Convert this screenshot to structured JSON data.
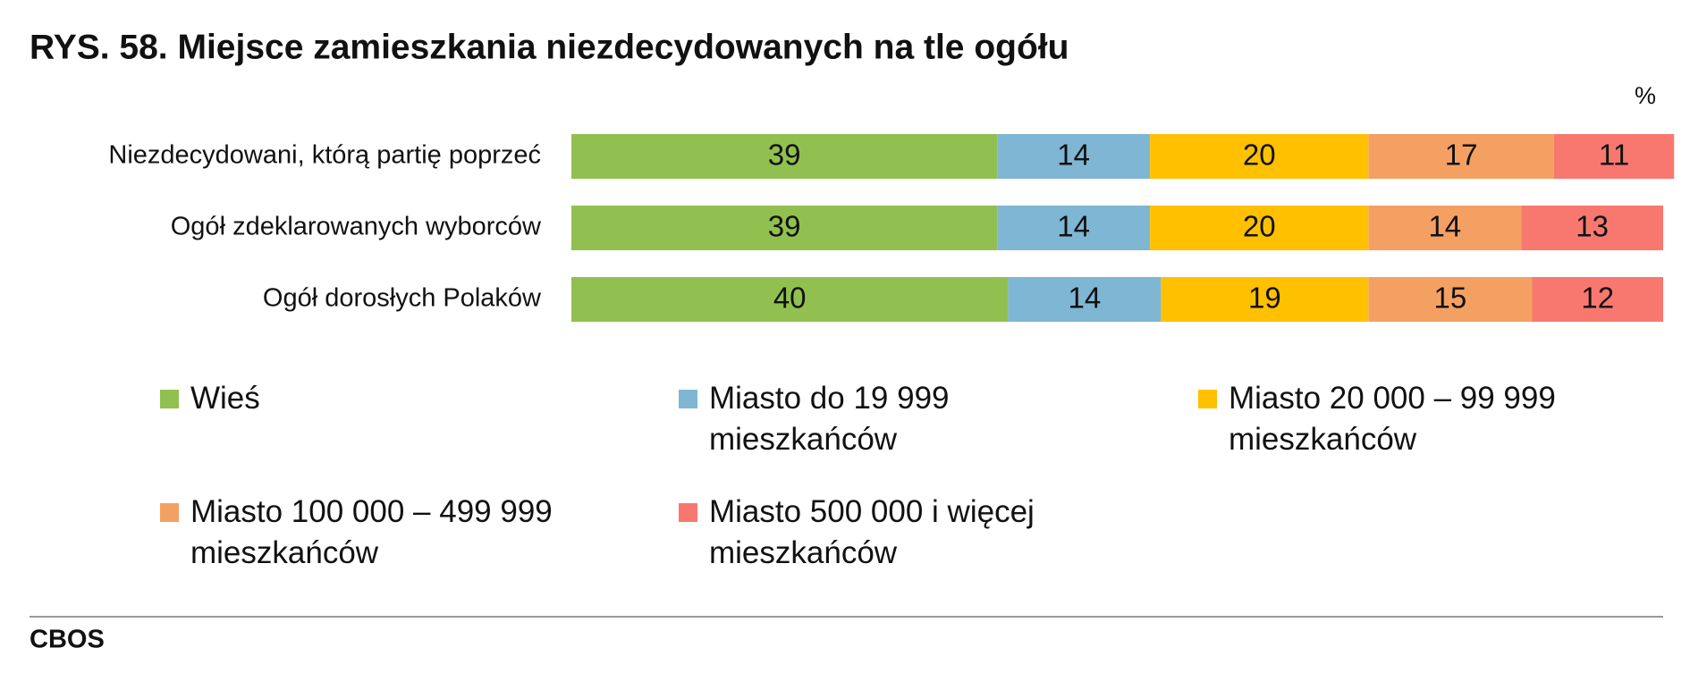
{
  "chart_data": {
    "type": "stacked-bar-horizontal",
    "title": "RYS. 58.  Miejsce zamieszkania niezdecydowanych na tle ogółu",
    "unit": "%",
    "source": "CBOS",
    "categories": [
      "Niezdecydowani, którą partię poprzeć",
      "Ogół zdeklarowanych wyborców",
      "Ogół dorosłych Polaków"
    ],
    "xlim": [
      0,
      100
    ],
    "series": [
      {
        "name": "Wieś",
        "color": "#92c050",
        "values": [
          39,
          39,
          40
        ]
      },
      {
        "name": "Miasto do 19 999 mieszkańców",
        "color": "#7eb6d4",
        "values": [
          14,
          14,
          14
        ]
      },
      {
        "name": "Miasto 20 000 – 99 999 mieszkańców",
        "color": "#ffc000",
        "values": [
          20,
          20,
          19
        ]
      },
      {
        "name": "Miasto 100 000 – 499 999 mieszkańców",
        "color": "#f4a062",
        "values": [
          17,
          14,
          15
        ]
      },
      {
        "name": "Miasto 500 000 i więcej mieszkańców",
        "color": "#f87870",
        "values": [
          11,
          13,
          12
        ]
      }
    ]
  }
}
